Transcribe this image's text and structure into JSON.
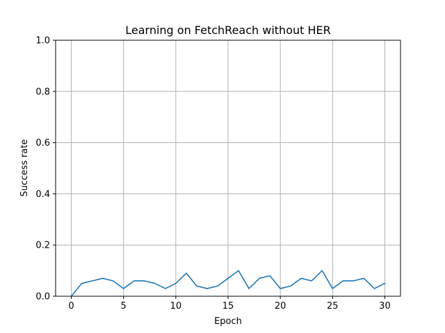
{
  "chart_data": {
    "type": "line",
    "title": "Learning on FetchReach without HER",
    "xlabel": "Epoch",
    "ylabel": "Success rate",
    "xlim": [
      -1.5,
      31.5
    ],
    "ylim": [
      0,
      1.0
    ],
    "xticks": [
      0,
      5,
      10,
      15,
      20,
      25,
      30
    ],
    "yticks": [
      0.0,
      0.2,
      0.4,
      0.6,
      0.8,
      1.0
    ],
    "grid": true,
    "series": [
      {
        "color": "#1f77b4",
        "x": [
          0,
          1,
          2,
          3,
          4,
          5,
          6,
          7,
          8,
          9,
          10,
          11,
          12,
          13,
          14,
          15,
          16,
          17,
          18,
          19,
          20,
          21,
          22,
          23,
          24,
          25,
          26,
          27,
          28,
          29,
          30
        ],
        "y": [
          0.0,
          0.05,
          0.06,
          0.07,
          0.06,
          0.03,
          0.06,
          0.06,
          0.05,
          0.03,
          0.05,
          0.09,
          0.04,
          0.03,
          0.04,
          0.07,
          0.1,
          0.03,
          0.07,
          0.08,
          0.03,
          0.04,
          0.07,
          0.06,
          0.1,
          0.03,
          0.06,
          0.06,
          0.07,
          0.03,
          0.05
        ]
      }
    ]
  }
}
